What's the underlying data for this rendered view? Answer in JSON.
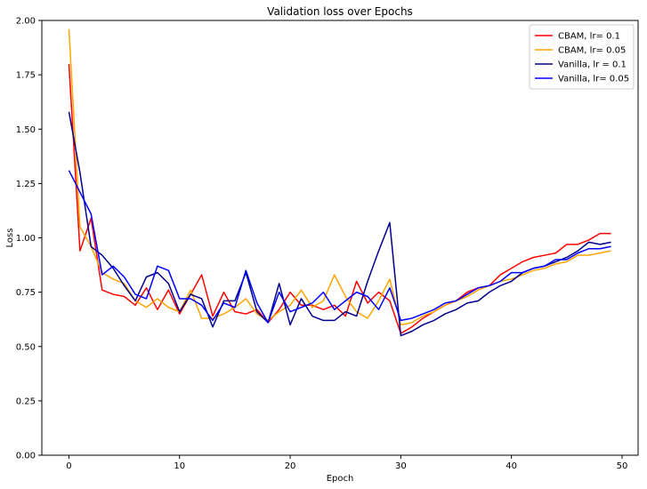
{
  "chart_data": {
    "type": "line",
    "title": "Validation loss over Epochs",
    "xlabel": "Epoch",
    "ylabel": "Loss",
    "xlim": [
      -2.45,
      51.45
    ],
    "ylim": [
      0,
      2
    ],
    "xticks": [
      0,
      10,
      20,
      30,
      40,
      50
    ],
    "yticks": [
      0.0,
      0.25,
      0.5,
      0.75,
      1.0,
      1.25,
      1.5,
      1.75,
      2.0
    ],
    "ytick_labels": [
      "0.00",
      "0.25",
      "0.50",
      "0.75",
      "1.00",
      "1.25",
      "1.50",
      "1.75",
      "2.00"
    ],
    "grid": false,
    "legend_position": "top-right",
    "x": [
      0,
      1,
      2,
      3,
      4,
      5,
      6,
      7,
      8,
      9,
      10,
      11,
      12,
      13,
      14,
      15,
      16,
      17,
      18,
      19,
      20,
      21,
      22,
      23,
      24,
      25,
      26,
      27,
      28,
      29,
      30,
      31,
      32,
      33,
      34,
      35,
      36,
      37,
      38,
      39,
      40,
      41,
      42,
      43,
      44,
      45,
      46,
      47,
      48,
      49
    ],
    "series": [
      {
        "name": "CBAM, lr= 0.1",
        "color": "#ff0000",
        "values": [
          1.8,
          0.94,
          1.09,
          0.76,
          0.74,
          0.73,
          0.69,
          0.77,
          0.67,
          0.76,
          0.65,
          0.74,
          0.83,
          0.64,
          0.75,
          0.66,
          0.65,
          0.67,
          0.61,
          0.67,
          0.75,
          0.69,
          0.69,
          0.67,
          0.69,
          0.64,
          0.8,
          0.7,
          0.75,
          0.71,
          0.56,
          0.59,
          0.63,
          0.66,
          0.69,
          0.71,
          0.75,
          0.77,
          0.78,
          0.83,
          0.86,
          0.89,
          0.91,
          0.92,
          0.93,
          0.97,
          0.97,
          0.99,
          1.02,
          1.02
        ]
      },
      {
        "name": "CBAM, lr= 0.05",
        "color": "#ffa500",
        "values": [
          1.96,
          1.05,
          0.96,
          0.84,
          0.81,
          0.79,
          0.71,
          0.68,
          0.72,
          0.68,
          0.66,
          0.76,
          0.63,
          0.63,
          0.65,
          0.68,
          0.72,
          0.65,
          0.62,
          0.66,
          0.69,
          0.76,
          0.68,
          0.71,
          0.83,
          0.73,
          0.66,
          0.63,
          0.71,
          0.81,
          0.6,
          0.61,
          0.64,
          0.66,
          0.69,
          0.71,
          0.73,
          0.76,
          0.78,
          0.8,
          0.81,
          0.83,
          0.85,
          0.86,
          0.88,
          0.89,
          0.92,
          0.92,
          0.93,
          0.94
        ]
      },
      {
        "name": "Vanilla, lr = 0.1",
        "color": "#00008b",
        "values": [
          1.58,
          1.3,
          0.96,
          0.92,
          0.86,
          0.78,
          0.71,
          0.82,
          0.84,
          0.79,
          0.66,
          0.74,
          0.72,
          0.59,
          0.71,
          0.71,
          0.84,
          0.66,
          0.61,
          0.79,
          0.6,
          0.72,
          0.64,
          0.62,
          0.62,
          0.66,
          0.64,
          0.8,
          0.94,
          1.07,
          0.55,
          0.57,
          0.6,
          0.62,
          0.65,
          0.67,
          0.7,
          0.71,
          0.75,
          0.78,
          0.8,
          0.84,
          0.86,
          0.87,
          0.89,
          0.91,
          0.94,
          0.98,
          0.97,
          0.98
        ]
      },
      {
        "name": "Vanilla, lr= 0.05",
        "color": "#0000ff",
        "values": [
          1.31,
          1.21,
          1.11,
          0.83,
          0.87,
          0.82,
          0.74,
          0.72,
          0.87,
          0.85,
          0.72,
          0.72,
          0.69,
          0.62,
          0.7,
          0.68,
          0.85,
          0.7,
          0.61,
          0.75,
          0.66,
          0.68,
          0.7,
          0.75,
          0.67,
          0.71,
          0.75,
          0.73,
          0.67,
          0.77,
          0.62,
          0.63,
          0.65,
          0.67,
          0.7,
          0.71,
          0.74,
          0.77,
          0.78,
          0.8,
          0.84,
          0.84,
          0.86,
          0.87,
          0.9,
          0.9,
          0.93,
          0.95,
          0.95,
          0.96
        ]
      }
    ]
  }
}
